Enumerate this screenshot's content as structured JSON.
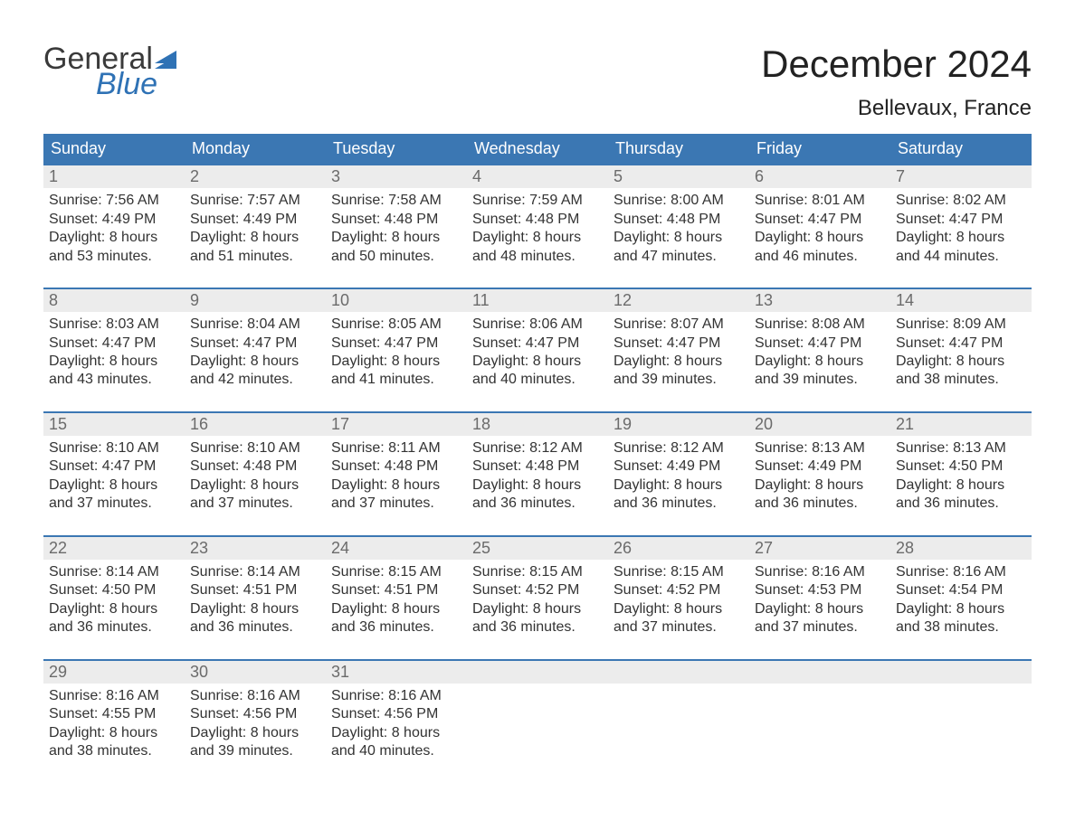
{
  "logo": {
    "word_top": "General",
    "word_bottom": "Blue",
    "flag_color": "#2f72b5",
    "text_color_top": "#3a3a3a",
    "text_color_bottom": "#2f72b5"
  },
  "header": {
    "title": "December 2024",
    "location": "Bellevaux, France"
  },
  "colors": {
    "header_bg": "#3b77b3",
    "header_text": "#ffffff",
    "week_border": "#3b77b3",
    "daynum_bg": "#ececec",
    "daynum_text": "#6b6b6b",
    "body_text": "#333333",
    "page_bg": "#ffffff"
  },
  "weekdays": [
    "Sunday",
    "Monday",
    "Tuesday",
    "Wednesday",
    "Thursday",
    "Friday",
    "Saturday"
  ],
  "labels": {
    "sunrise": "Sunrise:",
    "sunset": "Sunset:",
    "daylight_prefix": "Daylight:",
    "hours_word": "hours",
    "and_word": "and",
    "minutes_word": "minutes."
  },
  "weeks": [
    [
      {
        "day": 1,
        "sunrise": "7:56 AM",
        "sunset": "4:49 PM",
        "daylight_h": 8,
        "daylight_m": 53
      },
      {
        "day": 2,
        "sunrise": "7:57 AM",
        "sunset": "4:49 PM",
        "daylight_h": 8,
        "daylight_m": 51
      },
      {
        "day": 3,
        "sunrise": "7:58 AM",
        "sunset": "4:48 PM",
        "daylight_h": 8,
        "daylight_m": 50
      },
      {
        "day": 4,
        "sunrise": "7:59 AM",
        "sunset": "4:48 PM",
        "daylight_h": 8,
        "daylight_m": 48
      },
      {
        "day": 5,
        "sunrise": "8:00 AM",
        "sunset": "4:48 PM",
        "daylight_h": 8,
        "daylight_m": 47
      },
      {
        "day": 6,
        "sunrise": "8:01 AM",
        "sunset": "4:47 PM",
        "daylight_h": 8,
        "daylight_m": 46
      },
      {
        "day": 7,
        "sunrise": "8:02 AM",
        "sunset": "4:47 PM",
        "daylight_h": 8,
        "daylight_m": 44
      }
    ],
    [
      {
        "day": 8,
        "sunrise": "8:03 AM",
        "sunset": "4:47 PM",
        "daylight_h": 8,
        "daylight_m": 43
      },
      {
        "day": 9,
        "sunrise": "8:04 AM",
        "sunset": "4:47 PM",
        "daylight_h": 8,
        "daylight_m": 42
      },
      {
        "day": 10,
        "sunrise": "8:05 AM",
        "sunset": "4:47 PM",
        "daylight_h": 8,
        "daylight_m": 41
      },
      {
        "day": 11,
        "sunrise": "8:06 AM",
        "sunset": "4:47 PM",
        "daylight_h": 8,
        "daylight_m": 40
      },
      {
        "day": 12,
        "sunrise": "8:07 AM",
        "sunset": "4:47 PM",
        "daylight_h": 8,
        "daylight_m": 39
      },
      {
        "day": 13,
        "sunrise": "8:08 AM",
        "sunset": "4:47 PM",
        "daylight_h": 8,
        "daylight_m": 39
      },
      {
        "day": 14,
        "sunrise": "8:09 AM",
        "sunset": "4:47 PM",
        "daylight_h": 8,
        "daylight_m": 38
      }
    ],
    [
      {
        "day": 15,
        "sunrise": "8:10 AM",
        "sunset": "4:47 PM",
        "daylight_h": 8,
        "daylight_m": 37
      },
      {
        "day": 16,
        "sunrise": "8:10 AM",
        "sunset": "4:48 PM",
        "daylight_h": 8,
        "daylight_m": 37
      },
      {
        "day": 17,
        "sunrise": "8:11 AM",
        "sunset": "4:48 PM",
        "daylight_h": 8,
        "daylight_m": 37
      },
      {
        "day": 18,
        "sunrise": "8:12 AM",
        "sunset": "4:48 PM",
        "daylight_h": 8,
        "daylight_m": 36
      },
      {
        "day": 19,
        "sunrise": "8:12 AM",
        "sunset": "4:49 PM",
        "daylight_h": 8,
        "daylight_m": 36
      },
      {
        "day": 20,
        "sunrise": "8:13 AM",
        "sunset": "4:49 PM",
        "daylight_h": 8,
        "daylight_m": 36
      },
      {
        "day": 21,
        "sunrise": "8:13 AM",
        "sunset": "4:50 PM",
        "daylight_h": 8,
        "daylight_m": 36
      }
    ],
    [
      {
        "day": 22,
        "sunrise": "8:14 AM",
        "sunset": "4:50 PM",
        "daylight_h": 8,
        "daylight_m": 36
      },
      {
        "day": 23,
        "sunrise": "8:14 AM",
        "sunset": "4:51 PM",
        "daylight_h": 8,
        "daylight_m": 36
      },
      {
        "day": 24,
        "sunrise": "8:15 AM",
        "sunset": "4:51 PM",
        "daylight_h": 8,
        "daylight_m": 36
      },
      {
        "day": 25,
        "sunrise": "8:15 AM",
        "sunset": "4:52 PM",
        "daylight_h": 8,
        "daylight_m": 36
      },
      {
        "day": 26,
        "sunrise": "8:15 AM",
        "sunset": "4:52 PM",
        "daylight_h": 8,
        "daylight_m": 37
      },
      {
        "day": 27,
        "sunrise": "8:16 AM",
        "sunset": "4:53 PM",
        "daylight_h": 8,
        "daylight_m": 37
      },
      {
        "day": 28,
        "sunrise": "8:16 AM",
        "sunset": "4:54 PM",
        "daylight_h": 8,
        "daylight_m": 38
      }
    ],
    [
      {
        "day": 29,
        "sunrise": "8:16 AM",
        "sunset": "4:55 PM",
        "daylight_h": 8,
        "daylight_m": 38
      },
      {
        "day": 30,
        "sunrise": "8:16 AM",
        "sunset": "4:56 PM",
        "daylight_h": 8,
        "daylight_m": 39
      },
      {
        "day": 31,
        "sunrise": "8:16 AM",
        "sunset": "4:56 PM",
        "daylight_h": 8,
        "daylight_m": 40
      },
      null,
      null,
      null,
      null
    ]
  ]
}
